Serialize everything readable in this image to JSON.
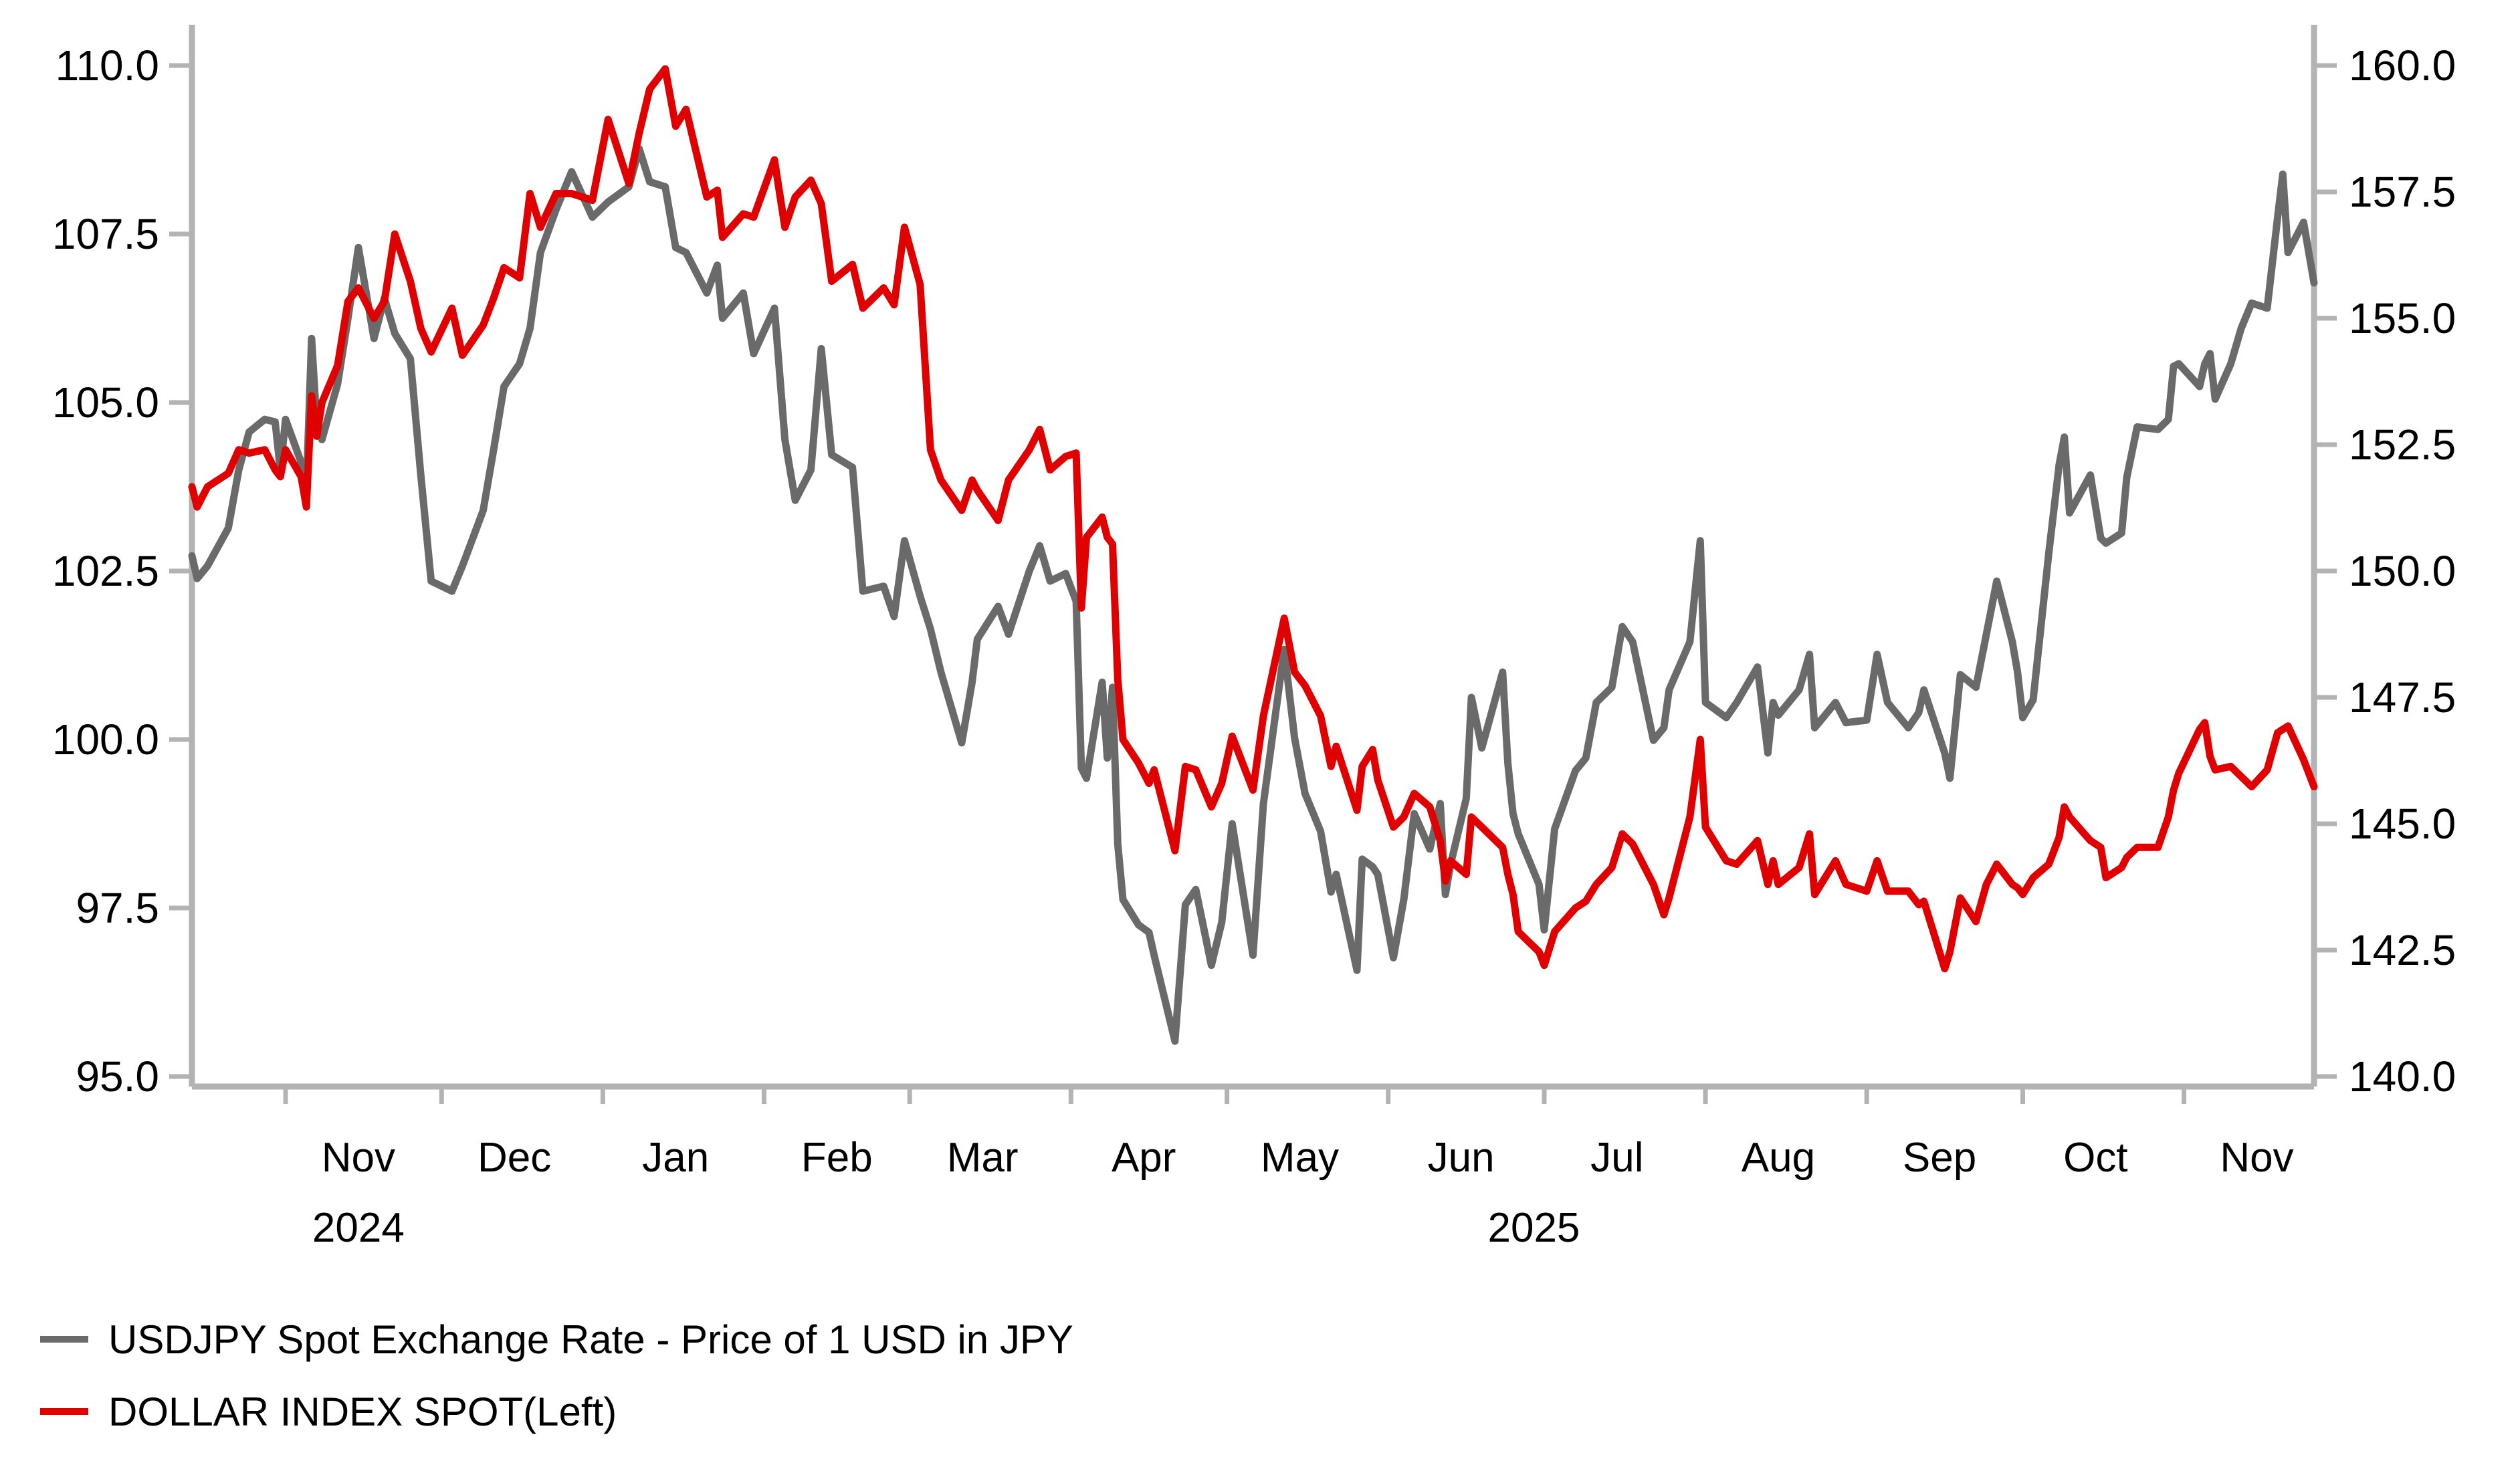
{
  "chart_data": {
    "type": "line",
    "background_color": "#ffffff",
    "axis_color": "#b3b3b3",
    "x_axis": {
      "start_date": "2024-10-14",
      "end_date": "2025-11-26",
      "month_ticks": [
        "2024-11-01",
        "2024-12-01",
        "2025-01-01",
        "2025-02-01",
        "2025-03-01",
        "2025-04-01",
        "2025-05-01",
        "2025-06-01",
        "2025-07-01",
        "2025-08-01",
        "2025-09-01",
        "2025-10-01",
        "2025-11-01"
      ],
      "month_labels": [
        {
          "label": "Nov",
          "date": "2024-11-15"
        },
        {
          "label": "Dec",
          "date": "2024-12-15"
        },
        {
          "label": "Jan",
          "date": "2025-01-15"
        },
        {
          "label": "Feb",
          "date": "2025-02-15"
        },
        {
          "label": "Mar",
          "date": "2025-03-15"
        },
        {
          "label": "Apr",
          "date": "2025-04-15"
        },
        {
          "label": "May",
          "date": "2025-05-15"
        },
        {
          "label": "Jun",
          "date": "2025-06-15"
        },
        {
          "label": "Jul",
          "date": "2025-07-15"
        },
        {
          "label": "Aug",
          "date": "2025-08-15"
        },
        {
          "label": "Sep",
          "date": "2025-09-15"
        },
        {
          "label": "Oct",
          "date": "2025-10-15"
        },
        {
          "label": "Nov",
          "date": "2025-11-15"
        }
      ],
      "year_labels": [
        {
          "label": "2024",
          "date": "2024-11-15"
        },
        {
          "label": "2025",
          "date": "2025-06-29"
        }
      ]
    },
    "left_axis": {
      "min": 95.0,
      "max": 110.0,
      "tick_values": [
        110.0,
        107.5,
        105.0,
        102.5,
        100.0,
        97.5,
        95.0
      ],
      "tick_labels": [
        "110.0",
        "107.5",
        "105.0",
        "102.5",
        "100.0",
        "97.5",
        "95.0"
      ]
    },
    "right_axis": {
      "min": 140.0,
      "max": 160.0,
      "tick_values": [
        160.0,
        157.5,
        155.0,
        152.5,
        150.0,
        147.5,
        145.0,
        142.5,
        140.0
      ],
      "tick_labels": [
        "160.0",
        "157.5",
        "155.0",
        "152.5",
        "150.0",
        "147.5",
        "145.0",
        "142.5",
        "140.0"
      ]
    },
    "series": [
      {
        "label": "USDJPY Spot Exchange Rate - Price of 1 USD in JPY",
        "axis": "right",
        "color": "#6a6a6a",
        "point_index": 2
      },
      {
        "label": "DOLLAR INDEX SPOT(Left)",
        "axis": "left",
        "color": "#e00000",
        "point_index": 1
      }
    ],
    "points": [
      [
        "2024-10-14",
        103.75,
        150.3
      ],
      [
        "2024-10-15",
        103.45,
        149.85
      ],
      [
        "2024-10-17",
        103.75,
        150.1
      ],
      [
        "2024-10-21",
        103.95,
        150.85
      ],
      [
        "2024-10-23",
        104.3,
        152.0
      ],
      [
        "2024-10-25",
        104.25,
        152.75
      ],
      [
        "2024-10-28",
        104.3,
        153.0
      ],
      [
        "2024-10-30",
        104.0,
        152.95
      ],
      [
        "2024-10-31",
        103.9,
        152.0
      ],
      [
        "2024-11-01",
        104.3,
        153.0
      ],
      [
        "2024-11-04",
        103.9,
        152.15
      ],
      [
        "2024-11-05",
        103.45,
        151.6
      ],
      [
        "2024-11-06",
        105.1,
        154.6
      ],
      [
        "2024-11-07",
        104.5,
        152.9
      ],
      [
        "2024-11-08",
        105.0,
        152.6
      ],
      [
        "2024-11-11",
        105.55,
        153.7
      ],
      [
        "2024-11-13",
        106.5,
        155.0
      ],
      [
        "2024-11-15",
        106.7,
        156.4
      ],
      [
        "2024-11-18",
        106.25,
        154.6
      ],
      [
        "2024-11-20",
        106.5,
        155.4
      ],
      [
        "2024-11-22",
        107.5,
        154.7
      ],
      [
        "2024-11-25",
        106.8,
        154.2
      ],
      [
        "2024-11-27",
        106.1,
        151.9
      ],
      [
        "2024-11-29",
        105.75,
        149.8
      ],
      [
        "2024-12-03",
        106.4,
        149.6
      ],
      [
        "2024-12-05",
        105.7,
        150.1
      ],
      [
        "2024-12-09",
        106.15,
        151.2
      ],
      [
        "2024-12-11",
        106.55,
        152.4
      ],
      [
        "2024-12-13",
        107.0,
        153.65
      ],
      [
        "2024-12-16",
        106.85,
        154.1
      ],
      [
        "2024-12-18",
        108.1,
        154.8
      ],
      [
        "2024-12-20",
        107.6,
        156.3
      ],
      [
        "2024-12-23",
        108.1,
        157.15
      ],
      [
        "2024-12-26",
        108.1,
        157.9
      ],
      [
        "2024-12-30",
        108.0,
        157.0
      ],
      [
        "2025-01-02",
        109.2,
        157.3
      ],
      [
        "2025-01-06",
        108.25,
        157.6
      ],
      [
        "2025-01-08",
        109.0,
        158.35
      ],
      [
        "2025-01-10",
        109.65,
        157.7
      ],
      [
        "2025-01-13",
        109.95,
        157.6
      ],
      [
        "2025-01-15",
        109.1,
        156.4
      ],
      [
        "2025-01-17",
        109.35,
        156.3
      ],
      [
        "2025-01-21",
        108.05,
        155.5
      ],
      [
        "2025-01-23",
        108.15,
        156.05
      ],
      [
        "2025-01-24",
        107.45,
        155.0
      ],
      [
        "2025-01-28",
        107.8,
        155.5
      ],
      [
        "2025-01-30",
        107.75,
        154.3
      ],
      [
        "2025-02-03",
        108.6,
        155.2
      ],
      [
        "2025-02-05",
        107.6,
        152.6
      ],
      [
        "2025-02-07",
        108.05,
        151.4
      ],
      [
        "2025-02-10",
        108.3,
        152.0
      ],
      [
        "2025-02-12",
        107.95,
        154.4
      ],
      [
        "2025-02-14",
        106.8,
        152.3
      ],
      [
        "2025-02-18",
        107.05,
        152.05
      ],
      [
        "2025-02-20",
        106.4,
        149.6
      ],
      [
        "2025-02-24",
        106.7,
        149.7
      ],
      [
        "2025-02-26",
        106.45,
        149.1
      ],
      [
        "2025-02-28",
        107.6,
        150.6
      ],
      [
        "2025-03-03",
        106.75,
        149.5
      ],
      [
        "2025-03-05",
        104.3,
        148.85
      ],
      [
        "2025-03-07",
        103.85,
        148.0
      ],
      [
        "2025-03-11",
        103.4,
        146.6
      ],
      [
        "2025-03-13",
        103.85,
        147.8
      ],
      [
        "2025-03-14",
        103.7,
        148.65
      ],
      [
        "2025-03-18",
        103.25,
        149.3
      ],
      [
        "2025-03-20",
        103.85,
        148.75
      ],
      [
        "2025-03-24",
        104.3,
        150.0
      ],
      [
        "2025-03-26",
        104.6,
        150.5
      ],
      [
        "2025-03-28",
        104.0,
        149.8
      ],
      [
        "2025-03-31",
        104.2,
        149.95
      ],
      [
        "2025-04-02",
        104.25,
        149.4
      ],
      [
        "2025-04-03",
        101.95,
        146.1
      ],
      [
        "2025-04-04",
        103.0,
        145.9
      ],
      [
        "2025-04-07",
        103.3,
        147.8
      ],
      [
        "2025-04-08",
        103.0,
        146.3
      ],
      [
        "2025-04-09",
        102.9,
        147.7
      ],
      [
        "2025-04-10",
        100.9,
        144.6
      ],
      [
        "2025-04-11",
        100.0,
        143.5
      ],
      [
        "2025-04-14",
        99.65,
        143.0
      ],
      [
        "2025-04-16",
        99.35,
        142.85
      ],
      [
        "2025-04-17",
        99.55,
        142.4
      ],
      [
        "2025-04-21",
        98.35,
        140.7
      ],
      [
        "2025-04-23",
        99.6,
        143.4
      ],
      [
        "2025-04-25",
        99.55,
        143.7
      ],
      [
        "2025-04-28",
        99.0,
        142.2
      ],
      [
        "2025-04-30",
        99.35,
        143.05
      ],
      [
        "2025-05-02",
        100.05,
        145.0
      ],
      [
        "2025-05-06",
        99.25,
        142.4
      ],
      [
        "2025-05-08",
        100.35,
        145.4
      ],
      [
        "2025-05-12",
        101.8,
        148.45
      ],
      [
        "2025-05-14",
        101.0,
        146.7
      ],
      [
        "2025-05-16",
        100.8,
        145.6
      ],
      [
        "2025-05-19",
        100.35,
        144.85
      ],
      [
        "2025-05-21",
        99.6,
        143.65
      ],
      [
        "2025-05-22",
        99.9,
        144.0
      ],
      [
        "2025-05-26",
        98.95,
        142.1
      ],
      [
        "2025-05-27",
        99.6,
        144.3
      ],
      [
        "2025-05-29",
        99.85,
        144.15
      ],
      [
        "2025-05-30",
        99.4,
        144.0
      ],
      [
        "2025-06-02",
        98.7,
        142.35
      ],
      [
        "2025-06-04",
        98.85,
        143.5
      ],
      [
        "2025-06-06",
        99.2,
        145.2
      ],
      [
        "2025-06-09",
        99.0,
        144.5
      ],
      [
        "2025-06-11",
        98.5,
        145.4
      ],
      [
        "2025-06-12",
        97.9,
        143.6
      ],
      [
        "2025-06-13",
        98.2,
        144.2
      ],
      [
        "2025-06-16",
        98.0,
        145.5
      ],
      [
        "2025-06-17",
        98.85,
        147.5
      ],
      [
        "2025-06-19",
        98.7,
        146.5
      ],
      [
        "2025-06-23",
        98.4,
        148.0
      ],
      [
        "2025-06-24",
        98.0,
        146.2
      ],
      [
        "2025-06-25",
        97.7,
        145.2
      ],
      [
        "2025-06-26",
        97.15,
        144.8
      ],
      [
        "2025-06-30",
        96.85,
        143.8
      ],
      [
        "2025-07-01",
        96.65,
        142.9
      ],
      [
        "2025-07-03",
        97.15,
        144.9
      ],
      [
        "2025-07-07",
        97.5,
        146.05
      ],
      [
        "2025-07-09",
        97.6,
        146.3
      ],
      [
        "2025-07-11",
        97.85,
        147.4
      ],
      [
        "2025-07-14",
        98.1,
        147.7
      ],
      [
        "2025-07-16",
        98.6,
        148.9
      ],
      [
        "2025-07-18",
        98.45,
        148.6
      ],
      [
        "2025-07-22",
        97.85,
        146.65
      ],
      [
        "2025-07-24",
        97.4,
        146.9
      ],
      [
        "2025-07-25",
        97.65,
        147.65
      ],
      [
        "2025-07-29",
        98.85,
        148.6
      ],
      [
        "2025-07-31",
        100.0,
        150.6
      ],
      [
        "2025-08-01",
        98.7,
        147.4
      ],
      [
        "2025-08-05",
        98.2,
        147.1
      ],
      [
        "2025-08-07",
        98.15,
        147.4
      ],
      [
        "2025-08-11",
        98.5,
        148.1
      ],
      [
        "2025-08-13",
        97.85,
        146.4
      ],
      [
        "2025-08-14",
        98.2,
        147.4
      ],
      [
        "2025-08-15",
        97.85,
        147.15
      ],
      [
        "2025-08-19",
        98.1,
        147.65
      ],
      [
        "2025-08-21",
        98.6,
        148.35
      ],
      [
        "2025-08-22",
        97.7,
        146.9
      ],
      [
        "2025-08-26",
        98.2,
        147.4
      ],
      [
        "2025-08-28",
        97.85,
        147.0
      ],
      [
        "2025-09-01",
        97.75,
        147.05
      ],
      [
        "2025-09-03",
        98.2,
        148.35
      ],
      [
        "2025-09-05",
        97.75,
        147.4
      ],
      [
        "2025-09-09",
        97.75,
        146.9
      ],
      [
        "2025-09-11",
        97.55,
        147.2
      ],
      [
        "2025-09-12",
        97.6,
        147.65
      ],
      [
        "2025-09-16",
        96.6,
        146.4
      ],
      [
        "2025-09-17",
        96.85,
        145.9
      ],
      [
        "2025-09-19",
        97.65,
        147.95
      ],
      [
        "2025-09-22",
        97.3,
        147.7
      ],
      [
        "2025-09-24",
        97.85,
        148.75
      ],
      [
        "2025-09-26",
        98.15,
        149.8
      ],
      [
        "2025-09-29",
        97.85,
        148.6
      ],
      [
        "2025-09-30",
        97.8,
        148.0
      ],
      [
        "2025-10-01",
        97.7,
        147.1
      ],
      [
        "2025-10-03",
        97.95,
        147.45
      ],
      [
        "2025-10-06",
        98.15,
        150.35
      ],
      [
        "2025-10-08",
        98.55,
        152.1
      ],
      [
        "2025-10-09",
        99.0,
        152.65
      ],
      [
        "2025-10-10",
        98.85,
        151.15
      ],
      [
        "2025-10-14",
        98.5,
        151.9
      ],
      [
        "2025-10-16",
        98.4,
        150.65
      ],
      [
        "2025-10-17",
        97.95,
        150.55
      ],
      [
        "2025-10-20",
        98.1,
        150.75
      ],
      [
        "2025-10-21",
        98.25,
        151.85
      ],
      [
        "2025-10-23",
        98.4,
        152.85
      ],
      [
        "2025-10-27",
        98.4,
        152.8
      ],
      [
        "2025-10-29",
        98.85,
        153.0
      ],
      [
        "2025-10-30",
        99.25,
        154.05
      ],
      [
        "2025-10-31",
        99.5,
        154.1
      ],
      [
        "2025-11-04",
        100.15,
        153.65
      ],
      [
        "2025-11-05",
        100.25,
        154.1
      ],
      [
        "2025-11-06",
        99.75,
        154.3
      ],
      [
        "2025-11-07",
        99.55,
        153.4
      ],
      [
        "2025-11-10",
        99.6,
        154.1
      ],
      [
        "2025-11-12",
        99.45,
        154.8
      ],
      [
        "2025-11-14",
        99.3,
        155.3
      ],
      [
        "2025-11-17",
        99.55,
        155.2
      ],
      [
        "2025-11-19",
        100.1,
        157.0
      ],
      [
        "2025-11-20",
        100.15,
        157.85
      ],
      [
        "2025-11-21",
        100.2,
        156.3
      ],
      [
        "2025-11-24",
        99.7,
        156.9
      ],
      [
        "2025-11-26",
        99.3,
        155.7
      ]
    ]
  }
}
